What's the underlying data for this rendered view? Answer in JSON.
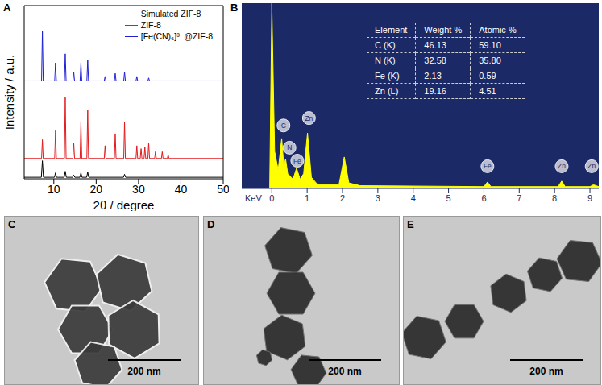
{
  "chart_data": [
    {
      "panel": "A",
      "type": "line",
      "x_label": "2θ / degree",
      "y_label": "Intensity / a.u.",
      "xlim": [
        3,
        50
      ],
      "xticks": [
        10,
        20,
        30,
        40,
        50
      ],
      "ylim": [
        0,
        115
      ],
      "tick_labels": "x",
      "legend": "upper right",
      "series": [
        {
          "name": "Simulated ZIF-8",
          "color": "#000000",
          "x": [
            3,
            7.05,
            7.3,
            7.55,
            10.15,
            10.4,
            10.65,
            12.45,
            12.7,
            12.95,
            14.45,
            14.7,
            14.95,
            16.15,
            16.4,
            16.65,
            17.75,
            18.0,
            18.25,
            26.45,
            26.7,
            26.95,
            50
          ],
          "values": [
            1,
            1,
            12,
            1,
            1,
            4,
            1,
            1,
            5,
            1,
            1,
            2.5,
            1,
            1,
            4,
            1,
            1,
            4.5,
            1,
            1,
            3,
            1,
            1
          ]
        },
        {
          "name": "ZIF-8",
          "color": "#e31a1c",
          "x": [
            3,
            7.1,
            7.3,
            7.5,
            10.2,
            10.4,
            10.6,
            12.5,
            12.7,
            12.9,
            14.5,
            14.7,
            14.9,
            16.2,
            16.4,
            16.6,
            17.8,
            18.0,
            18.2,
            21.9,
            22.1,
            22.3,
            24.3,
            24.5,
            24.7,
            26.5,
            26.7,
            26.9,
            29.4,
            29.6,
            29.8,
            30.4,
            30.6,
            30.8,
            31.3,
            31.5,
            31.7,
            32.2,
            32.4,
            32.6,
            33.8,
            34.0,
            34.2,
            35.4,
            35.6,
            35.8,
            36.8,
            37.0,
            37.2,
            50
          ],
          "values": [
            13.5,
            13.5,
            26,
            13.5,
            13.5,
            32,
            13.5,
            13.5,
            54,
            13.5,
            13.5,
            24,
            13.5,
            13.5,
            38,
            13.5,
            13.5,
            46,
            13.5,
            13.5,
            22,
            13.5,
            13.5,
            30,
            13.5,
            13.5,
            38,
            13.5,
            13.5,
            22,
            13.5,
            13.5,
            20,
            13.5,
            13.5,
            21,
            13.5,
            13.5,
            24,
            13.5,
            13.5,
            18,
            13.5,
            13.5,
            18,
            13.5,
            13.5,
            16,
            13.5,
            13.5
          ]
        },
        {
          "name": "[Fe(CN)₆]³⁻@ZIF-8",
          "color": "#1f1fd6",
          "x": [
            3,
            7.1,
            7.3,
            7.5,
            10.2,
            10.4,
            10.6,
            12.5,
            12.7,
            12.9,
            14.5,
            14.7,
            14.9,
            16.2,
            16.4,
            16.6,
            17.8,
            18.0,
            18.2,
            21.9,
            22.1,
            22.3,
            24.3,
            24.5,
            24.7,
            26.5,
            26.7,
            26.9,
            29.4,
            29.6,
            29.8,
            32.2,
            32.4,
            32.6,
            50
          ],
          "values": [
            65,
            65,
            98,
            65,
            65,
            77,
            65,
            65,
            83,
            65,
            65,
            71,
            65,
            65,
            77,
            65,
            65,
            79,
            65,
            65,
            68,
            65,
            65,
            70,
            65,
            65,
            71,
            65,
            65,
            68,
            65,
            65,
            67,
            65,
            65
          ]
        }
      ]
    },
    {
      "panel": "B",
      "type": "area",
      "x_label": "KeV",
      "xlim": [
        -0.85,
        9.25
      ],
      "xticks": [
        0,
        1,
        2,
        3,
        4,
        5,
        6,
        7,
        8,
        9
      ],
      "ylim": [
        0,
        100
      ],
      "tick_labels": "x",
      "color": "#ffff00",
      "x": [
        -0.85,
        -0.06,
        0,
        0.08,
        0.18,
        0.28,
        0.34,
        0.39,
        0.45,
        0.6,
        0.7,
        0.8,
        0.9,
        1.01,
        1.12,
        1.3,
        1.9,
        2.05,
        2.18,
        2.5,
        6.0,
        6.1,
        6.2,
        8.1,
        8.2,
        8.3,
        9.0,
        9.1,
        9.25
      ],
      "values": [
        0,
        0,
        100,
        20,
        10,
        27,
        12,
        16,
        8,
        5,
        11,
        5,
        8,
        30,
        6,
        2,
        2,
        17,
        3,
        1.5,
        1,
        3.5,
        1,
        1,
        4,
        1,
        1,
        2,
        1
      ],
      "annotations": [
        {
          "text": "C",
          "x": 0.33,
          "y": 34
        },
        {
          "text": "N",
          "x": 0.5,
          "y": 22
        },
        {
          "text": "Fe",
          "x": 0.72,
          "y": 15
        },
        {
          "text": "Zn",
          "x": 1.05,
          "y": 38
        },
        {
          "text": "Fe",
          "x": 6.1,
          "y": 12
        },
        {
          "text": "Zn",
          "x": 8.2,
          "y": 12
        },
        {
          "text": "Zn",
          "x": 9.05,
          "y": 12
        }
      ],
      "table": {
        "header": [
          "Element",
          "Weight %",
          "Atomic %"
        ],
        "rows": [
          [
            "C (K)",
            "46.13",
            "59.10"
          ],
          [
            "N (K)",
            "32.58",
            "35.80"
          ],
          [
            "Fe (K)",
            "2.13",
            "0.59"
          ],
          [
            "Zn (L)",
            "19.16",
            "4.51"
          ]
        ]
      }
    }
  ],
  "images": [
    {
      "panel": "C",
      "scale_bar": "200 nm"
    },
    {
      "panel": "D",
      "scale_bar": "200 nm"
    },
    {
      "panel": "E",
      "scale_bar": "200 nm"
    }
  ]
}
